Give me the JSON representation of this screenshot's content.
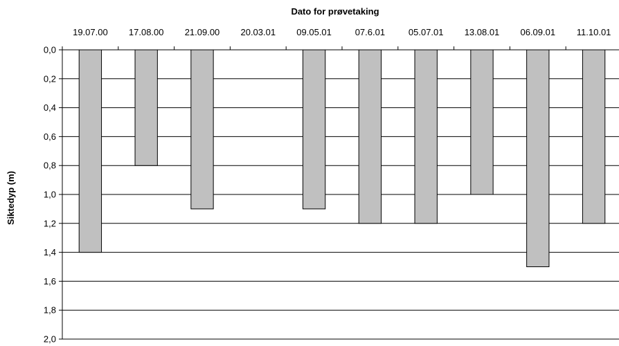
{
  "chart_data": {
    "type": "bar",
    "orientation": "vertical-inverted-y",
    "xlabel": "Dato for prøvetaking",
    "xlabel_position": "top",
    "ylabel": "Siktedyp (m)",
    "categories": [
      "19.07.00",
      "17.08.00",
      "21.09.00",
      "20.03.01",
      "09.05.01",
      "07.6.01",
      "05.07.01",
      "13.08.01",
      "06.09.01",
      "11.10.01"
    ],
    "values": [
      1.4,
      0.8,
      1.1,
      null,
      1.1,
      1.2,
      1.2,
      1.0,
      1.5,
      1.2
    ],
    "ylim": [
      0,
      2.0
    ],
    "yticks": [
      "0,0",
      "0,2",
      "0,4",
      "0,6",
      "0,8",
      "1,0",
      "1,2",
      "1,4",
      "1,6",
      "1,8",
      "2,0"
    ],
    "grid": true,
    "bar_color": "#c0c0c0",
    "bar_edge_color": "#000000"
  }
}
